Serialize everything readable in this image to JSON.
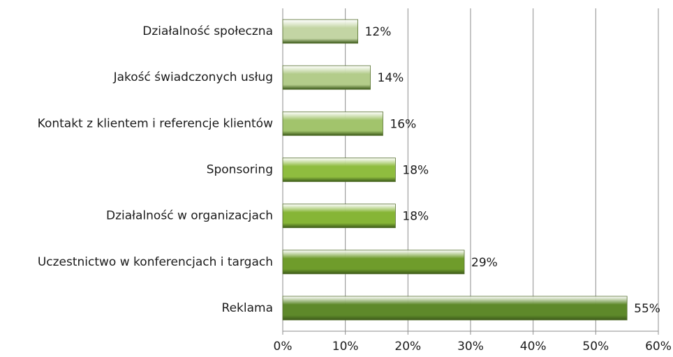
{
  "chart_data": {
    "type": "barh",
    "categories": [
      "Działalność społeczna",
      "Jakość świadczonych usług",
      "Kontakt z klientem i referencje klientów",
      "Sponsoring",
      "Działalność w organizacjach",
      "Uczestnictwo w konferencjach i targach",
      "Reklama"
    ],
    "values": [
      12,
      14,
      16,
      18,
      18,
      29,
      55
    ],
    "value_labels": [
      "12%",
      "14%",
      "16%",
      "18%",
      "18%",
      "29%",
      "55%"
    ],
    "colors": [
      "#c3d5a4",
      "#b3cc8a",
      "#a2c46c",
      "#8fbd3f",
      "#86b536",
      "#6f9c2b",
      "#5e892a"
    ],
    "xlim": [
      0,
      60
    ],
    "xticks": [
      {
        "value": 0,
        "label": "0%"
      },
      {
        "value": 10,
        "label": "10%"
      },
      {
        "value": 20,
        "label": "20%"
      },
      {
        "value": 30,
        "label": "30%"
      },
      {
        "value": 40,
        "label": "40%"
      },
      {
        "value": 50,
        "label": "50%"
      },
      {
        "value": 60,
        "label": "60%"
      }
    ],
    "grid": true
  }
}
